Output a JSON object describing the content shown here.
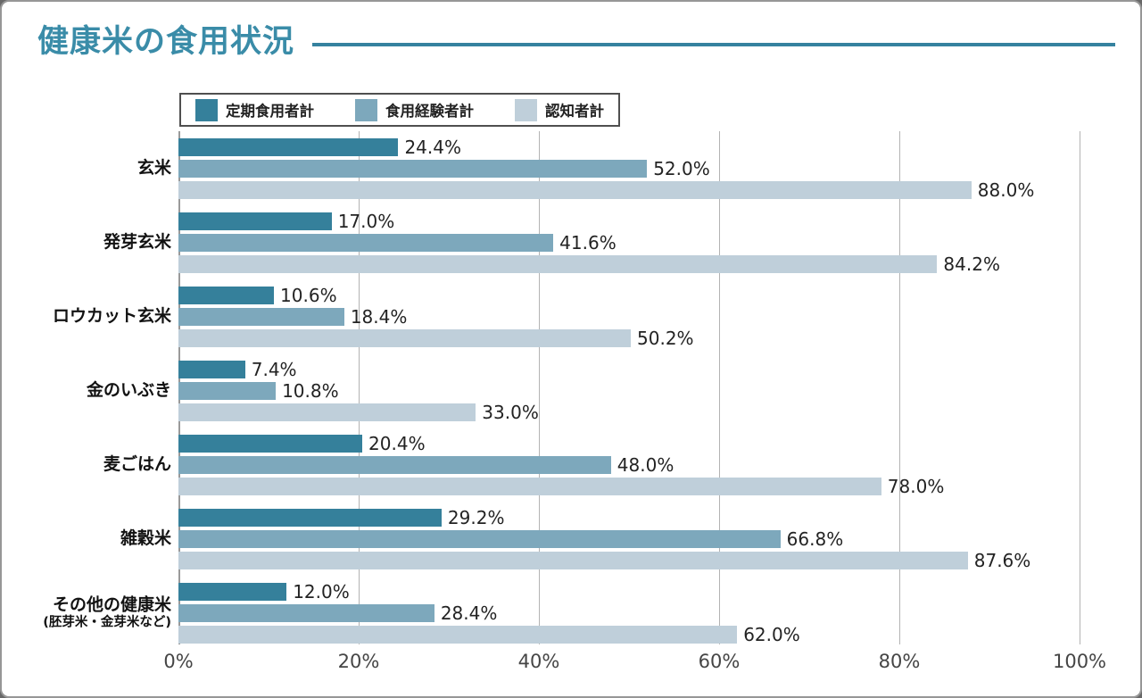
{
  "title": "健康米の食用状況",
  "colors": {
    "title_accent": "#3a8ca8",
    "title_rule": "#35829f",
    "series1": "#35809b",
    "series2": "#7da8bc",
    "series3": "#bfcfda",
    "gridline": "#b3b3b3",
    "axis_line": "#9a9a9a",
    "text_dark": "#232323"
  },
  "chart_data": {
    "type": "bar",
    "orientation": "horizontal",
    "title": "健康米の食用状況",
    "categories": [
      "玄米",
      "発芽玄米",
      "ロウカット玄米",
      "金のいぶき",
      "麦ごはん",
      "雑穀米",
      "その他の健康米"
    ],
    "category_sublabels": [
      "",
      "",
      "",
      "",
      "",
      "",
      "(胚芽米・金芽米など)"
    ],
    "series": [
      {
        "name": "定期食用者計",
        "color": "#35809b",
        "values": [
          24.4,
          17.0,
          10.6,
          7.4,
          20.4,
          29.2,
          12.0
        ]
      },
      {
        "name": "食用経験者計",
        "color": "#7da8bc",
        "values": [
          52.0,
          41.6,
          18.4,
          10.8,
          48.0,
          66.8,
          28.4
        ]
      },
      {
        "name": "認知者計",
        "color": "#bfcfda",
        "values": [
          88.0,
          84.2,
          50.2,
          33.0,
          78.0,
          87.6,
          62.0
        ]
      }
    ],
    "value_labels": [
      [
        "24.4%",
        "52.0%",
        "88.0%"
      ],
      [
        "17.0%",
        "41.6%",
        "84.2%"
      ],
      [
        "10.6%",
        "18.4%",
        "50.2%"
      ],
      [
        "7.4%",
        "10.8%",
        "33.0%"
      ],
      [
        "20.4%",
        "48.0%",
        "78.0%"
      ],
      [
        "29.2%",
        "66.8%",
        "87.6%"
      ],
      [
        "12.0%",
        "28.4%",
        "62.0%"
      ]
    ],
    "value_suffix": "%",
    "xlim": [
      0,
      100
    ],
    "xticks": [
      0,
      20,
      40,
      60,
      80,
      100
    ],
    "xtick_labels": [
      "0%",
      "20%",
      "40%",
      "60%",
      "80%",
      "100%"
    ],
    "grid": true,
    "legend_position": "top",
    "xlabel": "",
    "ylabel": ""
  }
}
